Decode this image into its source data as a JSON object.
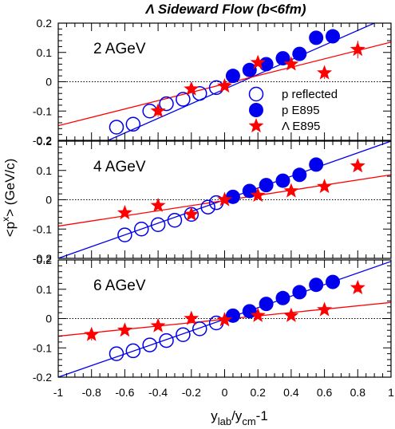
{
  "chart_data": {
    "type": "scatter",
    "title": "Λ Sideward Flow (b<6fm)",
    "xlabel_main": "y",
    "xlabel_sub1": "lab",
    "xlabel_mid": "/y",
    "xlabel_sub2": "cm",
    "xlabel_end": "-1",
    "ylabel_main": "<p",
    "ylabel_sup": "x",
    "ylabel_end": "> (GeV/c)",
    "xlim": [
      -1,
      1
    ],
    "ylim": [
      -0.2,
      0.2
    ],
    "x_ticks": [
      "-1",
      "-0.8",
      "-0.6",
      "-0.4",
      "-0.2",
      "0",
      "0.2",
      "0.4",
      "0.6",
      "0.8",
      "1"
    ],
    "y_ticks": [
      "-0.2",
      "-0.1",
      "0",
      "0.1",
      "0.2"
    ],
    "legend": {
      "placement": "right-lower of top panel",
      "entries": [
        "p reflected",
        "p E895",
        "Λ E895"
      ]
    },
    "colors": {
      "proton": "#0000ee",
      "lambda": "#ff0000",
      "frame": "#000000"
    },
    "panels": [
      {
        "label": "2 AGeV",
        "p_reflected": {
          "x": [
            -0.65,
            -0.55,
            -0.45,
            -0.35,
            -0.25,
            -0.15,
            -0.05
          ],
          "y": [
            -0.155,
            -0.145,
            -0.1,
            -0.075,
            -0.06,
            -0.04,
            -0.02
          ]
        },
        "p_e895": {
          "x": [
            0.05,
            0.15,
            0.25,
            0.35,
            0.45,
            0.55,
            0.65
          ],
          "y": [
            0.02,
            0.04,
            0.06,
            0.08,
            0.095,
            0.15,
            0.155
          ]
        },
        "lambda_e895": {
          "x": [
            -0.4,
            -0.2,
            0.0,
            0.2,
            0.4,
            0.6,
            0.8
          ],
          "y": [
            -0.1,
            -0.025,
            -0.015,
            0.065,
            0.06,
            0.03,
            0.11
          ],
          "err": [
            0.02,
            0.015,
            0.01,
            0.01,
            0.01,
            0.02,
            0.03
          ]
        },
        "p_fit": {
          "x": [
            -0.7,
            1.0
          ],
          "y": [
            -0.2,
            0.225
          ]
        },
        "lambda_fit": {
          "x": [
            -1.0,
            1.0
          ],
          "y": [
            -0.15,
            0.135
          ]
        }
      },
      {
        "label": "4 AGeV",
        "p_reflected": {
          "x": [
            -0.6,
            -0.5,
            -0.4,
            -0.3,
            -0.2,
            -0.1,
            -0.05
          ],
          "y": [
            -0.12,
            -0.1,
            -0.085,
            -0.07,
            -0.05,
            -0.025,
            -0.01
          ]
        },
        "p_e895": {
          "x": [
            0.05,
            0.15,
            0.25,
            0.35,
            0.45,
            0.55
          ],
          "y": [
            0.01,
            0.03,
            0.05,
            0.065,
            0.085,
            0.12
          ]
        },
        "lambda_e895": {
          "x": [
            -0.6,
            -0.4,
            -0.2,
            0.0,
            0.2,
            0.4,
            0.6,
            0.8
          ],
          "y": [
            -0.045,
            -0.02,
            -0.05,
            0.0,
            0.015,
            0.03,
            0.045,
            0.115
          ],
          "err": [
            0.01,
            0.01,
            0.01,
            0.01,
            0.01,
            0.01,
            0.01,
            0.01
          ]
        },
        "p_fit": {
          "x": [
            -1.0,
            1.0
          ],
          "y": [
            -0.2,
            0.2
          ]
        },
        "lambda_fit": {
          "x": [
            -1.0,
            1.0
          ],
          "y": [
            -0.09,
            0.085
          ]
        }
      },
      {
        "label": "6 AGeV",
        "p_reflected": {
          "x": [
            -0.65,
            -0.55,
            -0.45,
            -0.35,
            -0.25,
            -0.15,
            -0.05
          ],
          "y": [
            -0.12,
            -0.11,
            -0.09,
            -0.075,
            -0.055,
            -0.035,
            -0.015
          ]
        },
        "p_e895": {
          "x": [
            0.05,
            0.15,
            0.25,
            0.35,
            0.45,
            0.55,
            0.65
          ],
          "y": [
            0.01,
            0.025,
            0.05,
            0.07,
            0.09,
            0.115,
            0.125
          ]
        },
        "lambda_e895": {
          "x": [
            -0.8,
            -0.6,
            -0.4,
            -0.2,
            0.0,
            0.2,
            0.4,
            0.6,
            0.8
          ],
          "y": [
            -0.055,
            -0.04,
            -0.025,
            0.0,
            -0.005,
            0.01,
            0.01,
            0.03,
            0.105
          ],
          "err": [
            0.02,
            0.01,
            0.01,
            0.01,
            0.01,
            0.01,
            0.01,
            0.01,
            0.015
          ]
        },
        "p_fit": {
          "x": [
            -1.0,
            1.0
          ],
          "y": [
            -0.2,
            0.195
          ]
        },
        "lambda_fit": {
          "x": [
            -1.0,
            1.0
          ],
          "y": [
            -0.06,
            0.055
          ]
        }
      }
    ]
  }
}
